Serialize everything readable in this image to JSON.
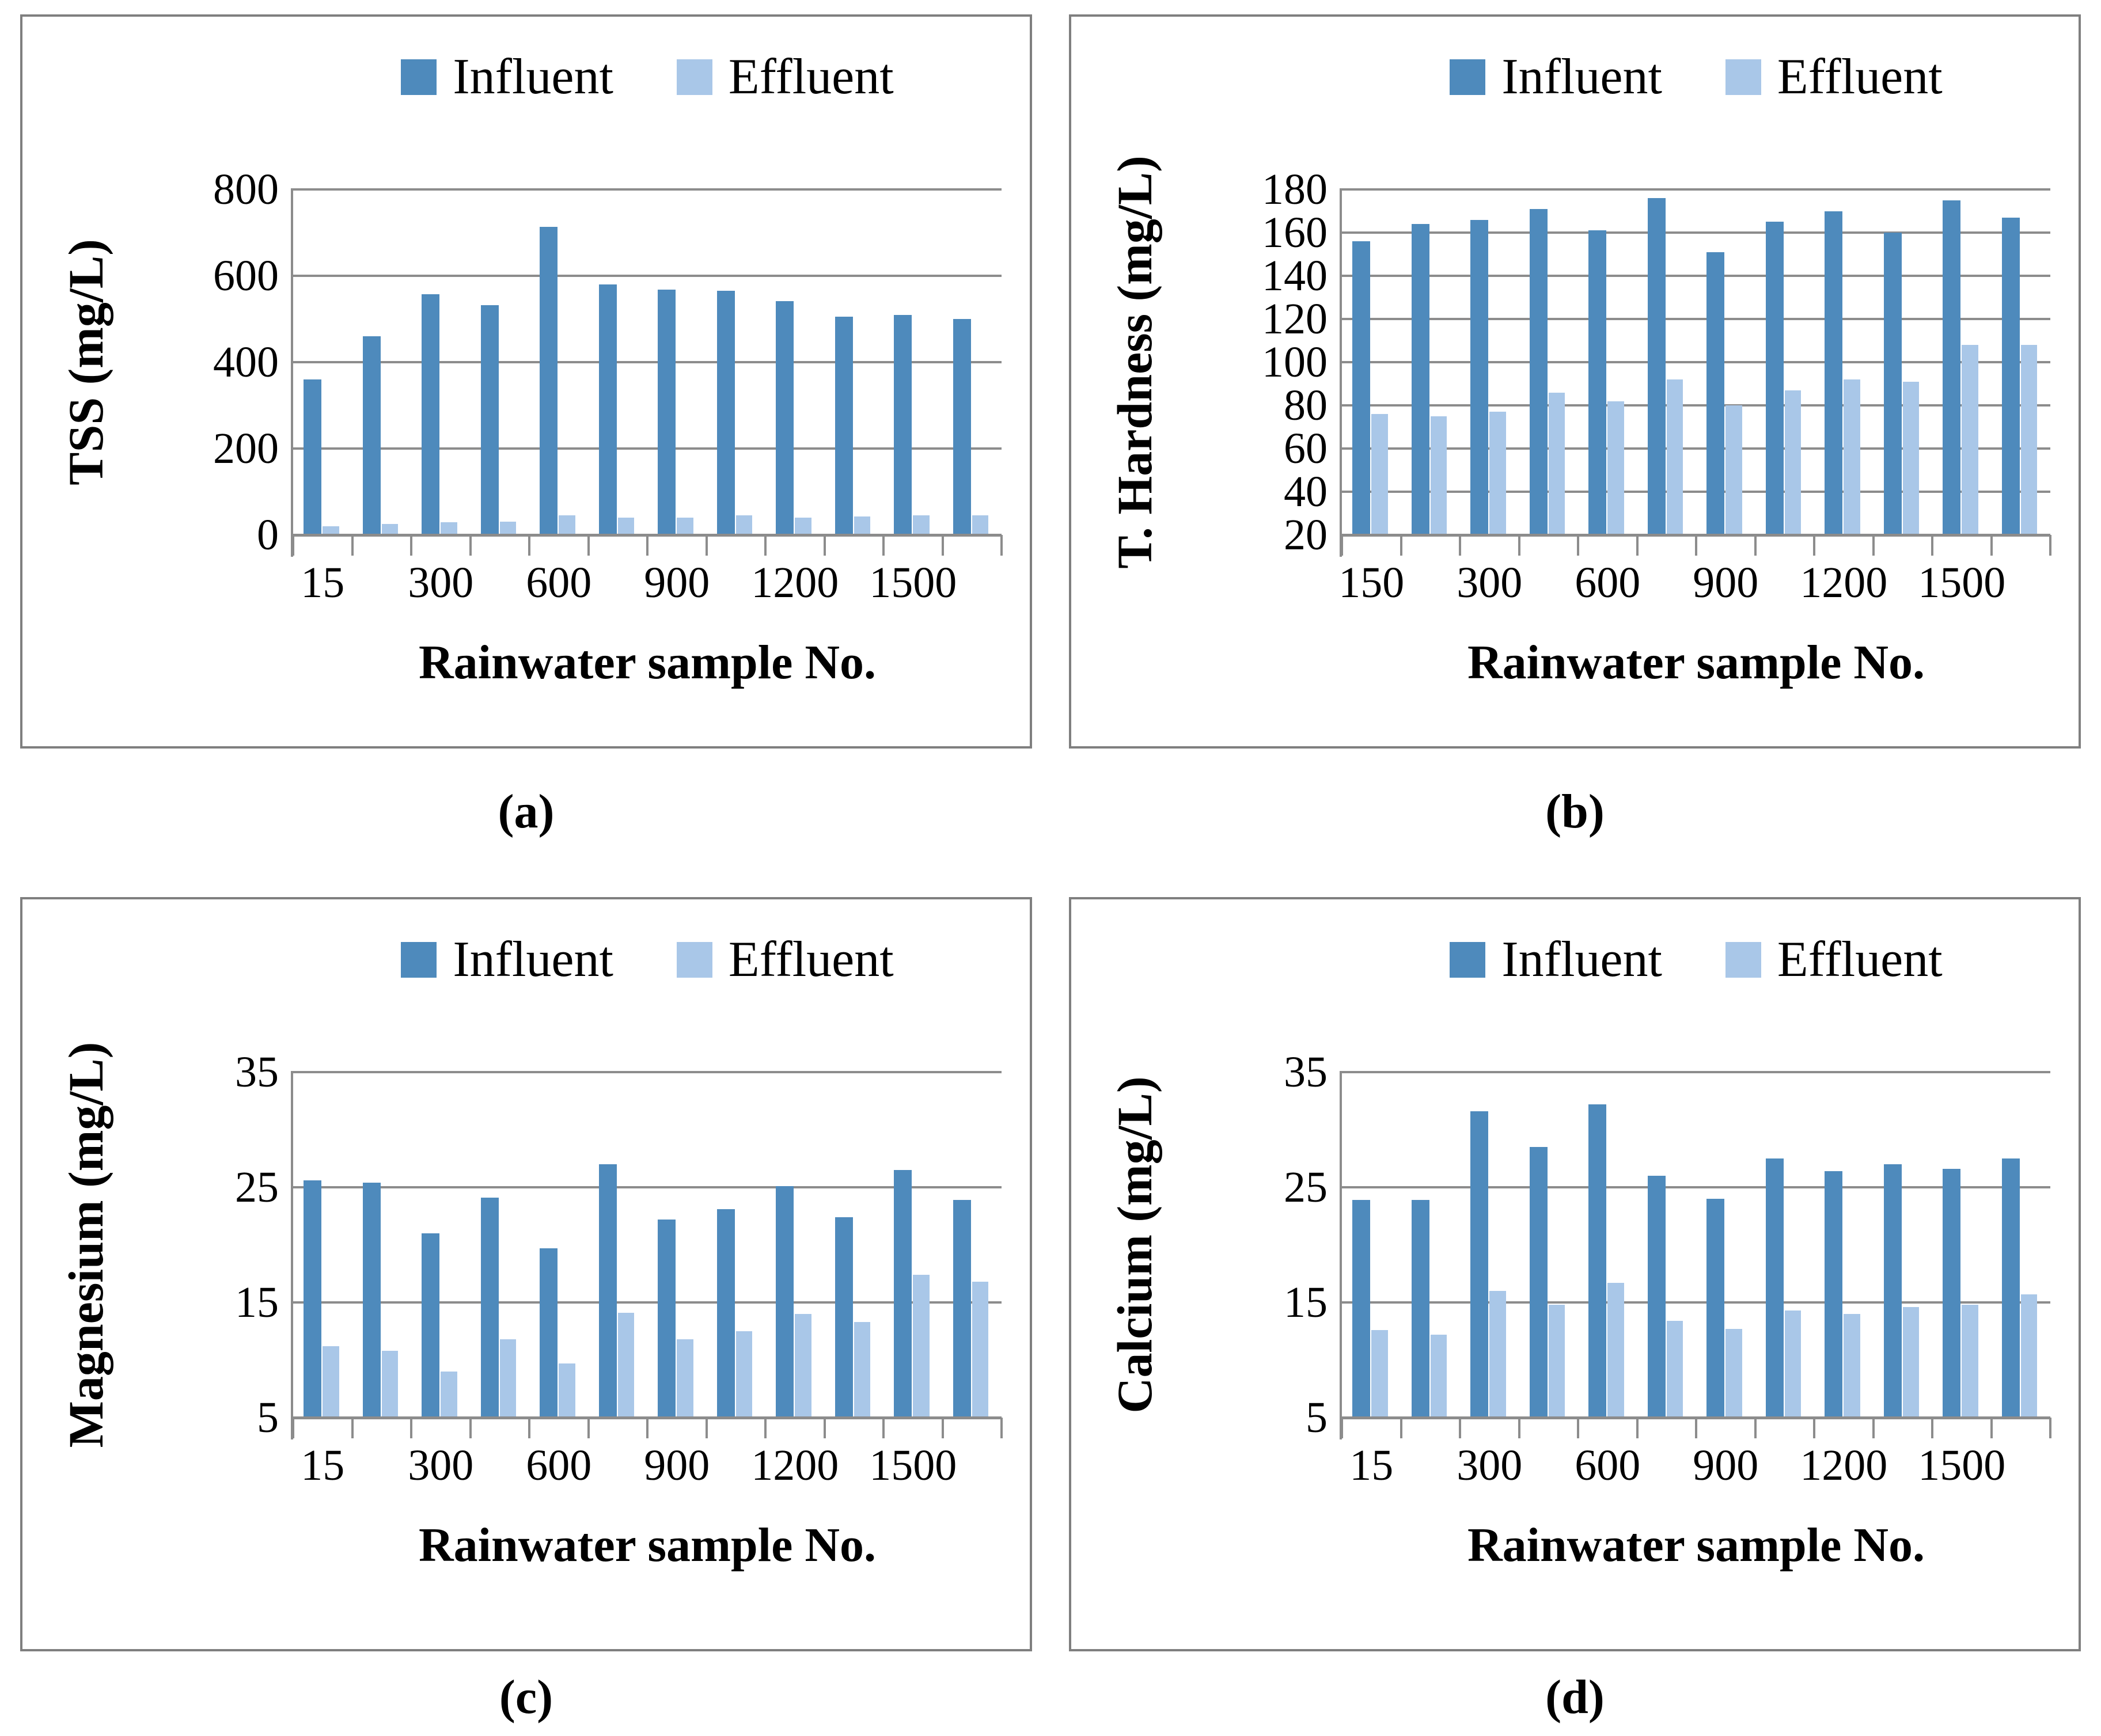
{
  "colors": {
    "influent": "#4E8ABC",
    "effluent": "#A9C7E8",
    "gridline": "#8C8C8C",
    "panel_border": "#7F7F7F",
    "text": "#000000"
  },
  "chart_data": [
    {
      "id": "a",
      "type": "bar",
      "caption": "(a)",
      "ylabel": "TSS (mg/L)",
      "xlabel": "Rainwater sample No.",
      "ylim": [
        0,
        800
      ],
      "yticks": [
        800,
        600,
        400,
        200,
        0
      ],
      "grid": true,
      "legend_position": "top",
      "categories": [
        "15",
        "",
        "300",
        "",
        "600",
        "",
        "900",
        "",
        "1200",
        "",
        "1500",
        ""
      ],
      "series": [
        {
          "name": "Influent",
          "color_key": "influent",
          "values": [
            360,
            460,
            558,
            532,
            713,
            580,
            568,
            565,
            541,
            505,
            509,
            500
          ]
        },
        {
          "name": "Effluent",
          "color_key": "effluent",
          "values": [
            20,
            25,
            30,
            31,
            46,
            40,
            40,
            45,
            40,
            43,
            46,
            46
          ]
        }
      ]
    },
    {
      "id": "b",
      "type": "bar",
      "caption": "(b)",
      "ylabel": "T. Hardness (mg/L)",
      "xlabel": "Rainwater sample No.",
      "ylim": [
        20,
        180
      ],
      "yticks": [
        180,
        160,
        140,
        120,
        100,
        80,
        60,
        40,
        20
      ],
      "grid": true,
      "legend_position": "top",
      "categories": [
        "150",
        "",
        "300",
        "",
        "600",
        "",
        "900",
        "",
        "1200",
        "",
        "1500",
        ""
      ],
      "series": [
        {
          "name": "Influent",
          "color_key": "influent",
          "values": [
            156,
            164,
            166,
            171,
            161,
            176,
            151,
            165,
            170,
            160,
            175,
            167
          ]
        },
        {
          "name": "Effluent",
          "color_key": "effluent",
          "values": [
            76,
            75,
            77,
            86,
            82,
            92,
            80,
            87,
            92,
            91,
            108,
            108
          ]
        }
      ]
    },
    {
      "id": "c",
      "type": "bar",
      "caption": "(c)",
      "ylabel": "Magnesium (mg/L)",
      "xlabel": "Rainwater sample No.",
      "ylim": [
        5,
        35
      ],
      "yticks": [
        35,
        25,
        15,
        5
      ],
      "grid": true,
      "legend_position": "top",
      "categories": [
        "15",
        "",
        "300",
        "",
        "600",
        "",
        "900",
        "",
        "1200",
        "",
        "1500",
        ""
      ],
      "series": [
        {
          "name": "Influent",
          "color_key": "influent",
          "values": [
            25.6,
            25.4,
            21.0,
            24.1,
            19.7,
            27.0,
            22.2,
            23.1,
            25.1,
            22.4,
            26.5,
            23.9
          ]
        },
        {
          "name": "Effluent",
          "color_key": "effluent",
          "values": [
            11.2,
            10.8,
            9.0,
            11.8,
            9.7,
            14.1,
            11.8,
            12.5,
            14.0,
            13.3,
            17.4,
            16.8
          ]
        }
      ]
    },
    {
      "id": "d",
      "type": "bar",
      "caption": "(d)",
      "ylabel": "Calcium (mg/L)",
      "xlabel": "Rainwater sample No.",
      "ylim": [
        5,
        35
      ],
      "yticks": [
        35,
        25,
        15,
        5
      ],
      "grid": true,
      "legend_position": "top",
      "categories": [
        "15",
        "",
        "300",
        "",
        "600",
        "",
        "900",
        "",
        "1200",
        "",
        "1500",
        ""
      ],
      "series": [
        {
          "name": "Influent",
          "color_key": "influent",
          "values": [
            23.9,
            23.9,
            31.6,
            28.5,
            32.2,
            26.0,
            24.0,
            27.5,
            26.4,
            27.0,
            26.6,
            27.5
          ]
        },
        {
          "name": "Effluent",
          "color_key": "effluent",
          "values": [
            12.6,
            12.2,
            16.0,
            14.8,
            16.7,
            13.4,
            12.7,
            14.3,
            14.0,
            14.6,
            14.8,
            15.7
          ]
        }
      ]
    }
  ]
}
